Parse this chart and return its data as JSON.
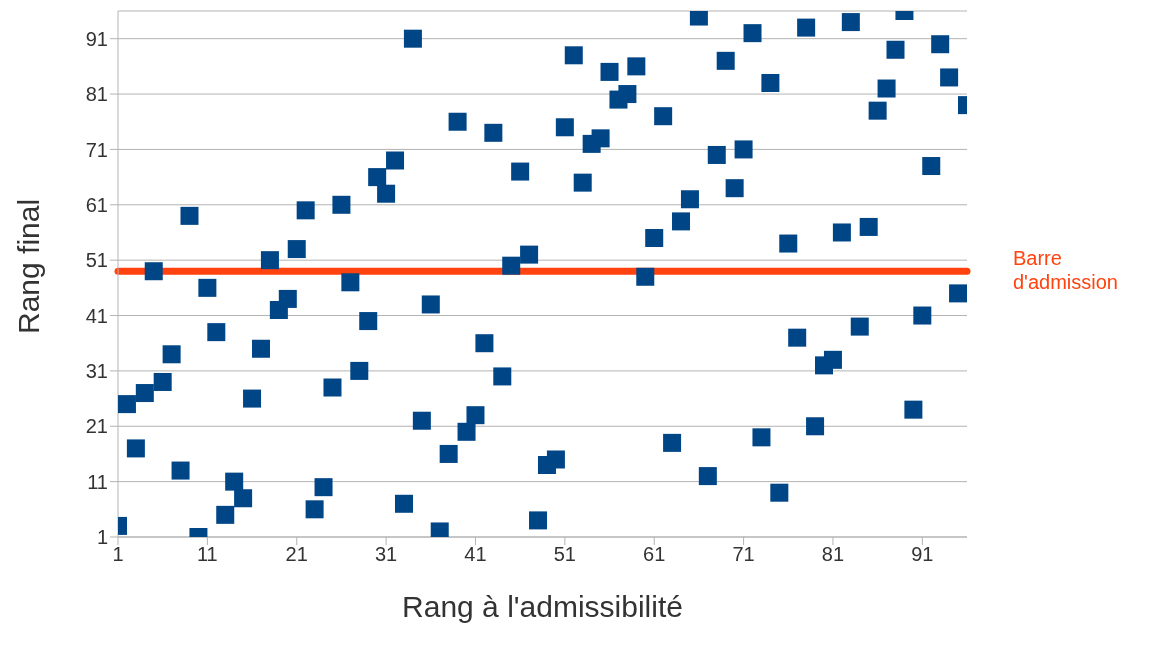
{
  "chart_data": {
    "type": "scatter",
    "xlabel": "Rang à l'admissibilité",
    "ylabel": "Rang final",
    "x": [
      1,
      2,
      3,
      4,
      5,
      6,
      7,
      8,
      9,
      10,
      11,
      12,
      13,
      14,
      15,
      16,
      17,
      18,
      19,
      20,
      21,
      22,
      23,
      24,
      25,
      26,
      27,
      28,
      29,
      30,
      31,
      32,
      33,
      34,
      35,
      36,
      37,
      38,
      39,
      40,
      41,
      42,
      43,
      44,
      45,
      46,
      47,
      48,
      49,
      50,
      51,
      52,
      53,
      54,
      55,
      56,
      57,
      58,
      59,
      60,
      61,
      62,
      63,
      64,
      65,
      66,
      67,
      68,
      69,
      70,
      71,
      72,
      73,
      74,
      75,
      76,
      77,
      78,
      79,
      80,
      81,
      82,
      83,
      84,
      85,
      86,
      87,
      88,
      89,
      90,
      91,
      92,
      93,
      94,
      95,
      96
    ],
    "values": [
      3,
      25,
      17,
      27,
      49,
      29,
      34,
      13,
      59,
      1,
      46,
      38,
      5,
      11,
      8,
      26,
      35,
      51,
      42,
      44,
      53,
      60,
      6,
      10,
      28,
      61,
      47,
      31,
      40,
      66,
      63,
      69,
      7,
      91,
      22,
      43,
      2,
      16,
      76,
      20,
      23,
      36,
      74,
      30,
      50,
      67,
      52,
      4,
      14,
      15,
      75,
      88,
      65,
      72,
      73,
      85,
      80,
      81,
      86,
      48,
      55,
      77,
      18,
      58,
      62,
      95,
      12,
      70,
      87,
      64,
      71,
      92,
      19,
      83,
      9,
      54,
      37,
      93,
      21,
      32,
      33,
      56,
      94,
      39,
      57,
      78,
      82,
      89,
      96,
      24,
      41,
      68,
      90,
      84,
      45,
      79
    ],
    "color": "#004586",
    "marker": "square",
    "xlim": [
      1,
      96
    ],
    "xticks": [
      1,
      11,
      21,
      31,
      41,
      51,
      61,
      71,
      81,
      91
    ],
    "ylim": [
      1,
      96
    ],
    "yticks": [
      1,
      11,
      21,
      31,
      41,
      51,
      61,
      71,
      81,
      91
    ],
    "grid": "y",
    "ref_lines": [
      {
        "axis": "y",
        "value": 49,
        "label": "Barre d'admission",
        "color": "#ff420e",
        "line_style": "solid"
      }
    ]
  }
}
